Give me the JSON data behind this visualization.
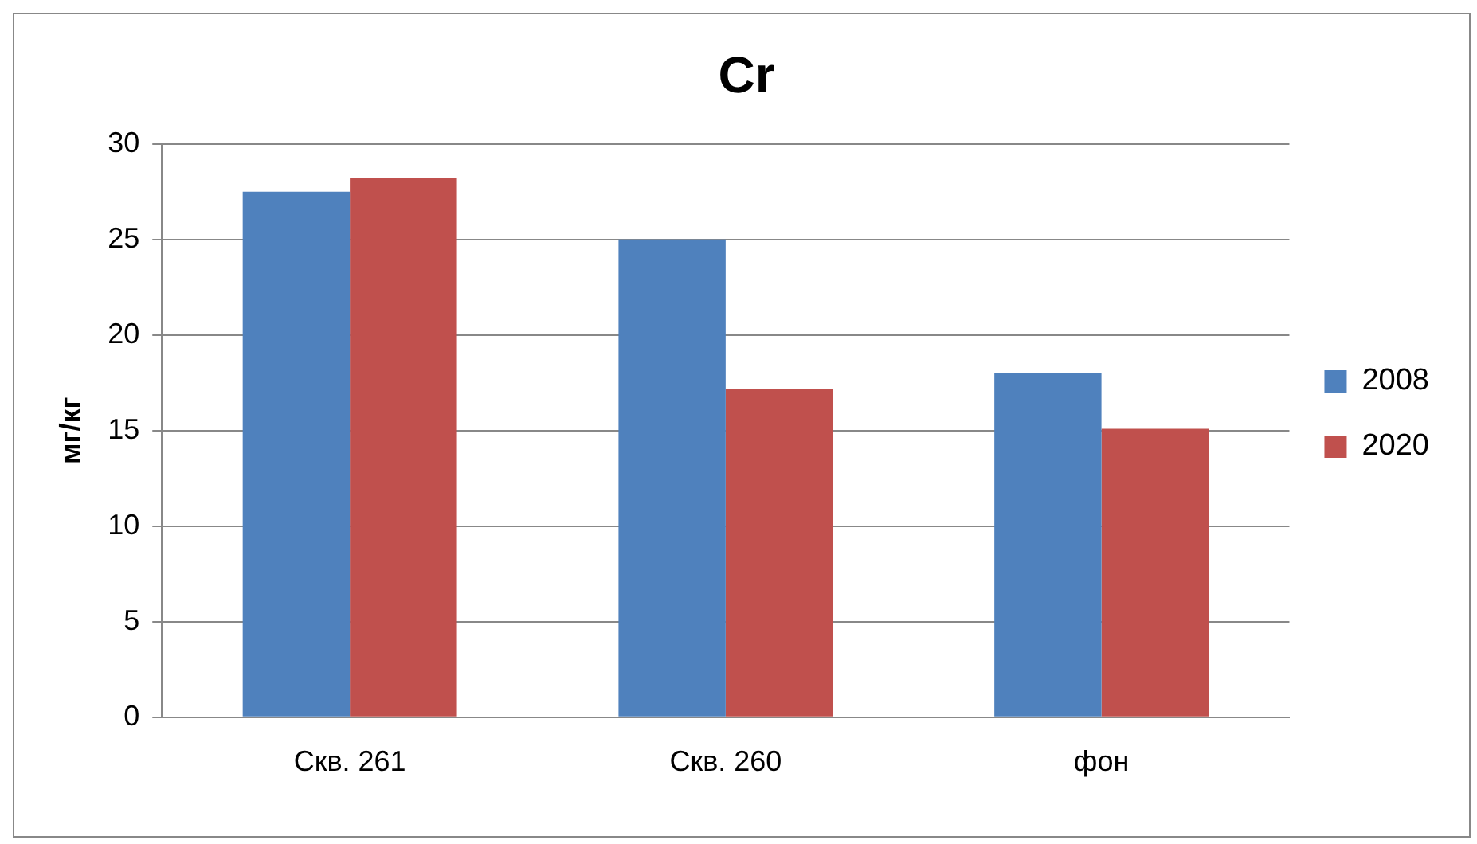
{
  "chart_data": {
    "type": "bar",
    "title": "Cr",
    "ylabel": "мг/кг",
    "categories": [
      "Скв. 261",
      "Скв. 260",
      "фон"
    ],
    "series": [
      {
        "name": "2008",
        "color": "#4f81bd",
        "values": [
          27.5,
          25.0,
          18.0
        ]
      },
      {
        "name": "2020",
        "color": "#c0504d",
        "values": [
          28.2,
          17.2,
          15.1
        ]
      }
    ],
    "ylim": [
      0,
      30
    ],
    "yticks": [
      0,
      5,
      10,
      15,
      20,
      25,
      30
    ],
    "grid": "y",
    "legend": "right"
  }
}
